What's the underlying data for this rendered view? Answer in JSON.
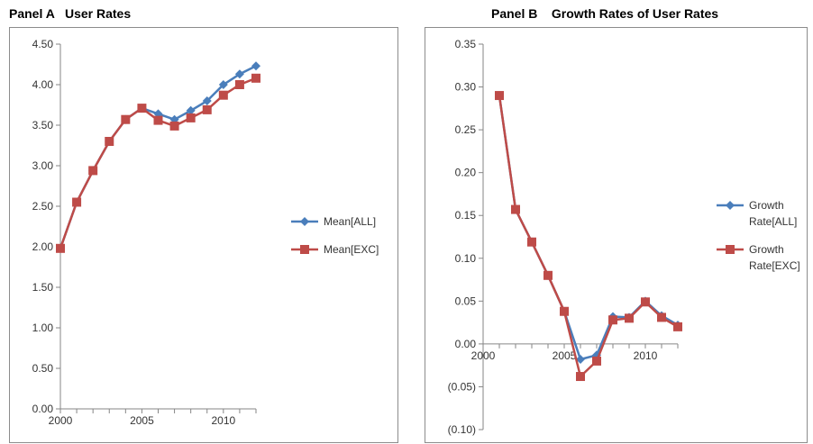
{
  "panels": [
    {
      "title": "Panel A   User Rates",
      "chart_data": {
        "type": "line",
        "title": "Panel A   User Rates",
        "xlabel": "",
        "ylabel": "",
        "xlim": [
          2000,
          2012
        ],
        "ylim": [
          0,
          4.5
        ],
        "x_ticks": [
          "2000",
          "2005",
          "2010"
        ],
        "x_tick_values": [
          2000,
          2005,
          2010
        ],
        "y_ticks": [
          "0.00",
          "0.50",
          "1.00",
          "1.50",
          "2.00",
          "2.50",
          "3.00",
          "3.50",
          "4.00",
          "4.50"
        ],
        "y_tick_values": [
          0,
          0.5,
          1,
          1.5,
          2,
          2.5,
          3,
          3.5,
          4,
          4.5
        ],
        "grid": false,
        "legend_position": "right",
        "x": [
          2000,
          2001,
          2002,
          2003,
          2004,
          2005,
          2006,
          2007,
          2008,
          2009,
          2010,
          2011,
          2012
        ],
        "series": [
          {
            "name": "Mean[ALL]",
            "color": "#4a7ebb",
            "marker": "diamond",
            "values": [
              1.98,
              2.55,
              2.94,
              3.3,
              3.57,
              3.71,
              3.64,
              3.57,
              3.68,
              3.8,
              4.0,
              4.13,
              4.23
            ]
          },
          {
            "name": "Mean[EXC]",
            "color": "#be4b48",
            "marker": "square",
            "values": [
              1.98,
              2.55,
              2.94,
              3.3,
              3.57,
              3.71,
              3.56,
              3.49,
              3.59,
              3.69,
              3.87,
              4.0,
              4.08
            ]
          }
        ]
      }
    },
    {
      "title": "Panel B    Growth Rates of User Rates",
      "chart_data": {
        "type": "line",
        "title": "Panel B    Growth Rates of User Rates",
        "xlabel": "",
        "ylabel": "",
        "xlim": [
          2000,
          2012
        ],
        "ylim": [
          -0.1,
          0.35
        ],
        "x_ticks": [
          "2000",
          "2005",
          "2010"
        ],
        "x_tick_values": [
          2000,
          2005,
          2010
        ],
        "y_ticks": [
          "(0.10)",
          "(0.05)",
          "0.00",
          "0.05",
          "0.10",
          "0.15",
          "0.20",
          "0.25",
          "0.30",
          "0.35"
        ],
        "y_tick_values": [
          -0.1,
          -0.05,
          0,
          0.05,
          0.1,
          0.15,
          0.2,
          0.25,
          0.3,
          0.35
        ],
        "grid": false,
        "legend_position": "right",
        "x": [
          2001,
          2002,
          2003,
          2004,
          2005,
          2006,
          2007,
          2008,
          2009,
          2010,
          2011,
          2012
        ],
        "series": [
          {
            "name": "Growth Rate[ALL]",
            "color": "#4a7ebb",
            "marker": "diamond",
            "values": [
              0.29,
              0.157,
              0.119,
              0.08,
              0.038,
              -0.018,
              -0.013,
              0.032,
              0.031,
              0.05,
              0.033,
              0.022
            ]
          },
          {
            "name": "Growth Rate[EXC]",
            "color": "#be4b48",
            "marker": "square",
            "values": [
              0.29,
              0.157,
              0.119,
              0.08,
              0.038,
              -0.038,
              -0.02,
              0.028,
              0.03,
              0.049,
              0.031,
              0.02
            ]
          }
        ]
      }
    }
  ]
}
